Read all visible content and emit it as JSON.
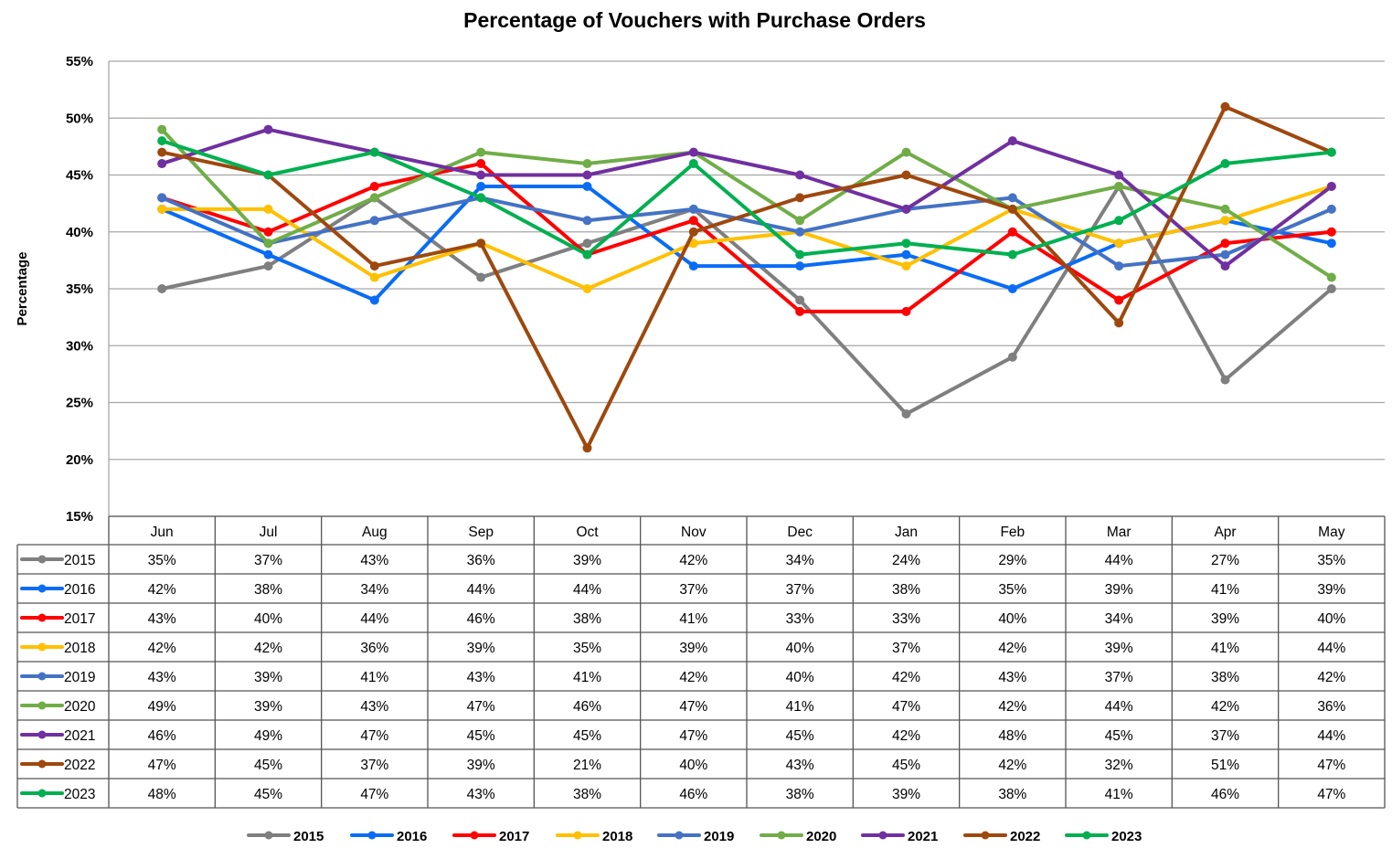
{
  "chart_data": {
    "type": "line",
    "title": "Percentage of Vouchers with Purchase Orders",
    "xlabel": "",
    "ylabel": "Percentage",
    "ylim": [
      15,
      55
    ],
    "yticks": [
      "15%",
      "20%",
      "25%",
      "30%",
      "35%",
      "40%",
      "45%",
      "50%",
      "55%"
    ],
    "grid": true,
    "legend_position": "bottom",
    "data_table": true,
    "categories": [
      "Jun",
      "Jul",
      "Aug",
      "Sep",
      "Oct",
      "Nov",
      "Dec",
      "Jan",
      "Feb",
      "Mar",
      "Apr",
      "May"
    ],
    "series": [
      {
        "name": "2015",
        "color": "#7f7f7f",
        "values": [
          35,
          37,
          43,
          36,
          39,
          42,
          34,
          24,
          29,
          44,
          27,
          35
        ]
      },
      {
        "name": "2016",
        "color": "#0a6cf5",
        "values": [
          42,
          38,
          34,
          44,
          44,
          37,
          37,
          38,
          35,
          39,
          41,
          39
        ]
      },
      {
        "name": "2017",
        "color": "#ff0000",
        "values": [
          43,
          40,
          44,
          46,
          38,
          41,
          33,
          33,
          40,
          34,
          39,
          40
        ]
      },
      {
        "name": "2018",
        "color": "#ffc000",
        "values": [
          42,
          42,
          36,
          39,
          35,
          39,
          40,
          37,
          42,
          39,
          41,
          44
        ]
      },
      {
        "name": "2019",
        "color": "#4472c4",
        "values": [
          43,
          39,
          41,
          43,
          41,
          42,
          40,
          42,
          43,
          37,
          38,
          42
        ]
      },
      {
        "name": "2020",
        "color": "#70ad47",
        "values": [
          49,
          39,
          43,
          47,
          46,
          47,
          41,
          47,
          42,
          44,
          42,
          36
        ]
      },
      {
        "name": "2021",
        "color": "#7030a0",
        "values": [
          46,
          49,
          47,
          45,
          45,
          47,
          45,
          42,
          48,
          45,
          37,
          44
        ]
      },
      {
        "name": "2022",
        "color": "#9e480e",
        "values": [
          47,
          45,
          37,
          39,
          21,
          40,
          43,
          45,
          42,
          32,
          51,
          47
        ]
      },
      {
        "name": "2023",
        "color": "#00b050",
        "values": [
          48,
          45,
          47,
          43,
          38,
          46,
          38,
          39,
          38,
          41,
          46,
          47
        ]
      }
    ]
  }
}
